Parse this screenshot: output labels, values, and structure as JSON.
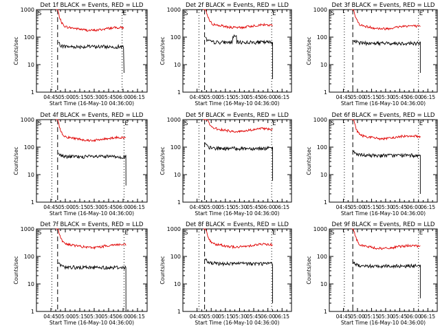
{
  "colors": {
    "events": "#000000",
    "lld": "#e00000",
    "axis": "#000000"
  },
  "chart_data": [
    {
      "type": "line",
      "title": "Det 1f BLACK = Events, RED = LLD",
      "ylabel": "Counts/sec",
      "xlabel": "Start Time (16-May-10 04:36:00)",
      "x_ticks": [
        "04:45",
        "05:00",
        "05:15",
        "05:30",
        "05:45",
        "06:00",
        "06:15"
      ],
      "y_ticks": [
        "1",
        "10",
        "100",
        "1000"
      ],
      "y_scale": "log",
      "ylim": [
        1,
        1000
      ],
      "markers": {
        "start": "S",
        "end": "E"
      },
      "x_range_min": [
        -15,
        100
      ],
      "events_span_min": [
        6.5,
        76
      ],
      "lld_level": 200,
      "events_level": 45,
      "events_bump": 0,
      "end_drop": 5,
      "vlines": [
        {
          "min": 1,
          "style": "dotted"
        },
        {
          "min": 7,
          "style": "dashed"
        },
        {
          "min": 74,
          "style": "dotted"
        }
      ]
    },
    {
      "type": "line",
      "title": "Det 2f BLACK = Events, RED = LLD",
      "ylabel": "Counts/sec",
      "xlabel": "Start Time (16-May-10 04:36:00)",
      "x_ticks": [
        "04:45",
        "05:00",
        "05:15",
        "05:30",
        "05:45",
        "06:00",
        "06:15"
      ],
      "y_ticks": [
        "1",
        "10",
        "100",
        "1000"
      ],
      "y_scale": "log",
      "ylim": [
        1,
        1000
      ],
      "markers": {
        "start": "S",
        "end": "E"
      },
      "x_range_min": [
        -15,
        100
      ],
      "events_span_min": [
        8,
        80
      ],
      "lld_level": 250,
      "events_level": 65,
      "events_bump": 1,
      "end_drop": 3,
      "vlines": [
        {
          "min": 2,
          "style": "dotted"
        },
        {
          "min": 8,
          "style": "dashed"
        },
        {
          "min": 79,
          "style": "dotted"
        }
      ]
    },
    {
      "type": "line",
      "title": "Det 3f BLACK = Events, RED = LLD",
      "ylabel": "Counts/sec",
      "xlabel": "Start Time (16-May-10 04:36:00)",
      "x_ticks": [
        "04:45",
        "05:00",
        "05:15",
        "05:30",
        "05:45",
        "06:00",
        "06:15"
      ],
      "y_ticks": [
        "1",
        "10",
        "100",
        "1000"
      ],
      "y_scale": "log",
      "ylim": [
        1,
        1000
      ],
      "markers": {
        "start": "S",
        "end": "E"
      },
      "x_range_min": [
        -15,
        100
      ],
      "events_span_min": [
        10,
        82
      ],
      "lld_level": 230,
      "events_level": 60,
      "events_bump": 0,
      "end_drop": 5,
      "vlines": [
        {
          "min": 1,
          "style": "dotted"
        },
        {
          "min": 10,
          "style": "dashed"
        },
        {
          "min": 80,
          "style": "dotted"
        }
      ]
    },
    {
      "type": "line",
      "title": "Det 4f BLACK = Events, RED = LLD",
      "ylabel": "Counts/sec",
      "xlabel": "Start Time (16-May-10 04:36:00)",
      "x_ticks": [
        "04:45",
        "05:00",
        "05:15",
        "05:30",
        "05:45",
        "06:00",
        "06:15"
      ],
      "y_ticks": [
        "1",
        "10",
        "100",
        "1000"
      ],
      "y_scale": "log",
      "ylim": [
        1,
        1000
      ],
      "markers": {
        "start": "S",
        "end": "E"
      },
      "x_range_min": [
        -15,
        100
      ],
      "events_span_min": [
        6.5,
        78
      ],
      "lld_level": 200,
      "events_level": 45,
      "events_bump": 0,
      "end_drop": 4,
      "vlines": [
        {
          "min": 1,
          "style": "dotted"
        },
        {
          "min": 7,
          "style": "dashed"
        },
        {
          "min": 76,
          "style": "dotted"
        }
      ]
    },
    {
      "type": "line",
      "title": "Det 5f BLACK = Events, RED = LLD",
      "ylabel": "Counts/sec",
      "xlabel": "Start Time (16-May-10 04:36:00)",
      "x_ticks": [
        "04:45",
        "05:00",
        "05:15",
        "05:30",
        "05:45",
        "06:00",
        "06:15"
      ],
      "y_ticks": [
        "1",
        "10",
        "100",
        "1000"
      ],
      "y_scale": "log",
      "ylim": [
        1,
        1000
      ],
      "markers": {
        "start": "S",
        "end": "E"
      },
      "x_range_min": [
        -15,
        100
      ],
      "events_span_min": [
        8,
        80
      ],
      "lld_level": 420,
      "events_level": 90,
      "events_bump": 0,
      "end_drop": 6,
      "vlines": [
        {
          "min": 2,
          "style": "dotted"
        },
        {
          "min": 8,
          "style": "dashed"
        },
        {
          "min": 79,
          "style": "dotted"
        }
      ]
    },
    {
      "type": "line",
      "title": "Det 6f BLACK = Events, RED = LLD",
      "ylabel": "Counts/sec",
      "xlabel": "Start Time (16-May-10 04:36:00)",
      "x_ticks": [
        "04:45",
        "05:00",
        "05:15",
        "05:30",
        "05:45",
        "06:00",
        "06:15"
      ],
      "y_ticks": [
        "1",
        "10",
        "100",
        "1000"
      ],
      "y_scale": "log",
      "ylim": [
        1,
        1000
      ],
      "markers": {
        "start": "S",
        "end": "E"
      },
      "x_range_min": [
        -15,
        100
      ],
      "events_span_min": [
        10,
        82
      ],
      "lld_level": 230,
      "events_level": 50,
      "events_bump": 0,
      "end_drop": 2,
      "vlines": [
        {
          "min": 1,
          "style": "dotted"
        },
        {
          "min": 10,
          "style": "dashed"
        },
        {
          "min": 80,
          "style": "dotted"
        }
      ]
    },
    {
      "type": "line",
      "title": "Det 7f BLACK = Events, RED = LLD",
      "ylabel": "Counts/sec",
      "xlabel": "Start Time (16-May-10 04:36:00)",
      "x_ticks": [
        "04:45",
        "05:00",
        "05:15",
        "05:30",
        "05:45",
        "06:00",
        "06:15"
      ],
      "y_ticks": [
        "1",
        "10",
        "100",
        "1000"
      ],
      "y_scale": "log",
      "ylim": [
        1,
        1000
      ],
      "markers": {
        "start": "S",
        "end": "E"
      },
      "x_range_min": [
        -15,
        100
      ],
      "events_span_min": [
        6.5,
        78
      ],
      "lld_level": 240,
      "events_level": 40,
      "events_bump": 0,
      "end_drop": 1,
      "vlines": [
        {
          "min": 1,
          "style": "dotted"
        },
        {
          "min": 7,
          "style": "dashed"
        },
        {
          "min": 76,
          "style": "dotted"
        }
      ]
    },
    {
      "type": "line",
      "title": "Det 8f BLACK = Events, RED = LLD",
      "ylabel": "Counts/sec",
      "xlabel": "Start Time (16-May-10 04:36:00)",
      "x_ticks": [
        "04:45",
        "05:00",
        "05:15",
        "05:30",
        "05:45",
        "06:00",
        "06:15"
      ],
      "y_ticks": [
        "1",
        "10",
        "100",
        "1000"
      ],
      "y_scale": "log",
      "ylim": [
        1,
        1000
      ],
      "markers": {
        "start": "S",
        "end": "E"
      },
      "x_range_min": [
        -15,
        100
      ],
      "events_span_min": [
        8,
        80
      ],
      "lld_level": 250,
      "events_level": 55,
      "events_bump": 0,
      "end_drop": 2,
      "vlines": [
        {
          "min": 2,
          "style": "dotted"
        },
        {
          "min": 8,
          "style": "dashed"
        },
        {
          "min": 79,
          "style": "dotted"
        }
      ]
    },
    {
      "type": "line",
      "title": "Det 9f BLACK = Events, RED = LLD",
      "ylabel": "Counts/sec",
      "xlabel": "Start Time (16-May-10 04:36:00)",
      "x_ticks": [
        "04:45",
        "05:00",
        "05:15",
        "05:30",
        "05:45",
        "06:00",
        "06:15"
      ],
      "y_ticks": [
        "1",
        "10",
        "100",
        "1000"
      ],
      "y_scale": "log",
      "ylim": [
        1,
        1000
      ],
      "markers": {
        "start": "S",
        "end": "E"
      },
      "x_range_min": [
        -15,
        100
      ],
      "events_span_min": [
        10,
        82
      ],
      "lld_level": 220,
      "events_level": 45,
      "events_bump": 0,
      "end_drop": 3,
      "vlines": [
        {
          "min": 1,
          "style": "dotted"
        },
        {
          "min": 10,
          "style": "dashed"
        },
        {
          "min": 80,
          "style": "dotted"
        }
      ]
    }
  ]
}
